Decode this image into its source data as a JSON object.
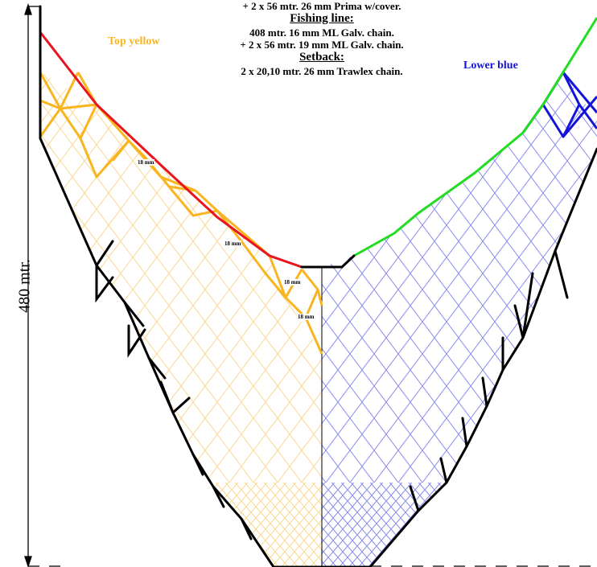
{
  "spec": {
    "headrope_extra": "+ 2 x 56 mtr. 26 mm Prima w/cover.",
    "fishing_line_heading": "Fishing line:",
    "fishing_line_main": "408 mtr. 16 mm ML Galv. chain.",
    "fishing_line_extra": "+ 2 x 56 mtr. 19 mm ML Galv. chain.",
    "setback_heading": "Setback:",
    "setback_value": "2 x 20,10 mtr. 26 mm Trawlex chain."
  },
  "panels": {
    "top": {
      "label": "Top yellow",
      "color": "#f9b51f",
      "light_color": "#fcd891"
    },
    "lower": {
      "label": "Lower blue",
      "color": "#1414d8",
      "light_color": "#8a8af0"
    }
  },
  "lines": {
    "headrope_color": "#e8141e",
    "footrope_color": "#22dd22",
    "selvedge_color": "#000000"
  },
  "mesh_labels": [
    "18 mm",
    "18 mm",
    "18 mm",
    "18 mm"
  ],
  "length_label": "480 mtr."
}
